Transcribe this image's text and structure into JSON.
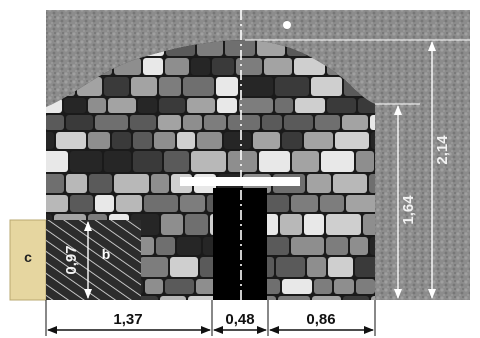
{
  "colors": {
    "rock": "#8c8c8c",
    "stone_dark": "#2a2a2a",
    "stone_mid": "#6f6f6f",
    "stone_light": "#bdbdbd",
    "mortar": "#1a1a1a",
    "zone_c": "#e6d6a0",
    "zone_b": "#2c2c2c",
    "dim_line": "#111111",
    "dim_line_light": "#ffffff"
  },
  "dimensions": {
    "bottom_left": "1,37",
    "bottom_mid": "0,48",
    "bottom_right": "0,86",
    "height_total": "2,14",
    "height_wall": "1,64",
    "height_zone": "0,97"
  },
  "labels": {
    "zone_c": "c",
    "zone_b": "b"
  }
}
